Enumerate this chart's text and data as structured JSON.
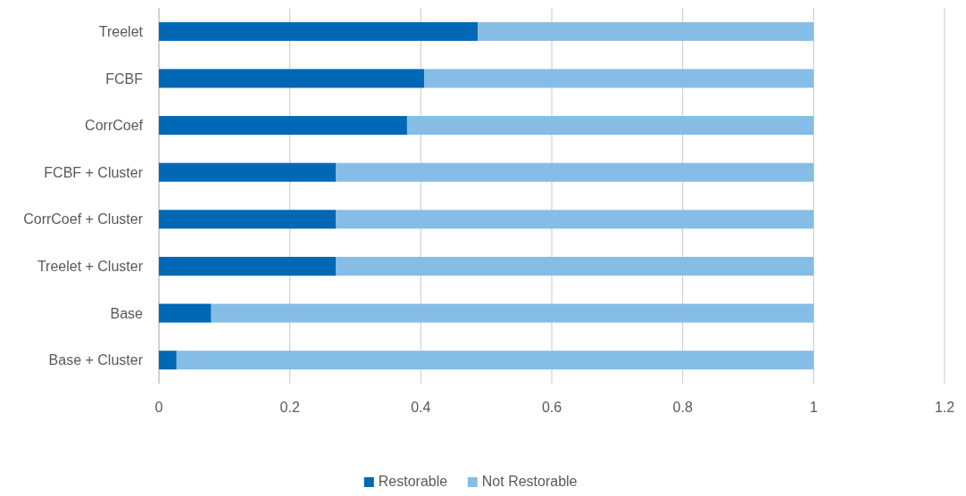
{
  "chart_data": {
    "type": "bar",
    "orientation": "horizontal",
    "stacked": true,
    "categories": [
      "Treelet",
      "FCBF",
      "CorrCoef",
      "FCBF + Cluster",
      "CorrCoef + Cluster",
      "Treelet + Cluster",
      "Base",
      "Base + Cluster"
    ],
    "series": [
      {
        "name": "Restorable",
        "color": "#0068b4",
        "values": [
          0.487,
          0.405,
          0.379,
          0.27,
          0.27,
          0.27,
          0.08,
          0.027
        ]
      },
      {
        "name": "Not Restorable",
        "color": "#86bde6",
        "values": [
          0.513,
          0.595,
          0.621,
          0.73,
          0.73,
          0.73,
          0.92,
          0.973
        ]
      }
    ],
    "xlim": [
      0,
      1.2
    ],
    "xticks": [
      0,
      0.2,
      0.4,
      0.6,
      0.8,
      1,
      1.2
    ],
    "grid": "x",
    "legend": "bottom"
  }
}
